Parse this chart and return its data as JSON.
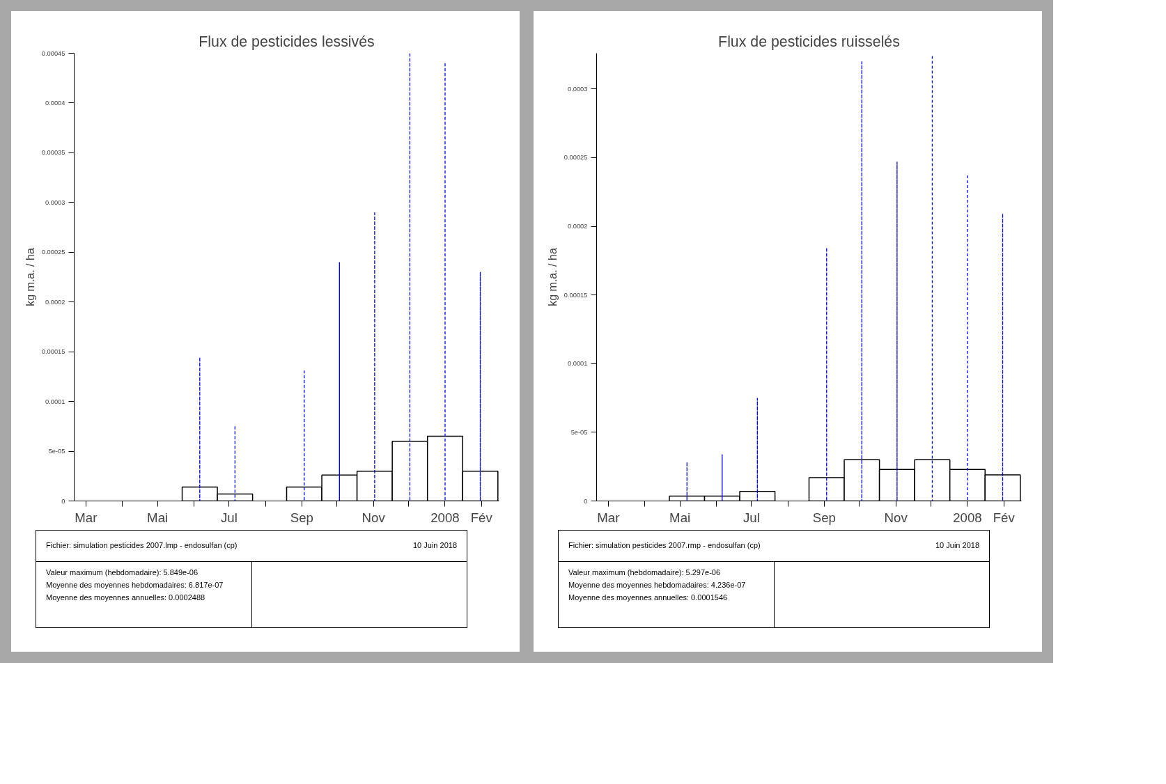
{
  "chart_data": [
    {
      "type": "bar",
      "title": "Flux de pesticides lessivés",
      "ylabel": "kg m.a. / ha",
      "series": [
        {
          "color": "#ffffff",
          "x": [
            "2007-03-08",
            "2007-04-07",
            "2007-05-07",
            "2007-06-06",
            "2007-07-06",
            "2007-08-05",
            "2007-09-03",
            "2007-10-03",
            "2007-11-02",
            "2007-12-02",
            "2008-01-01",
            "2008-01-31"
          ],
          "values": [
            0,
            0,
            0,
            1.4e-05,
            7e-06,
            0,
            1.4e-05,
            2.6e-05,
            3e-05,
            6e-05,
            6.5e-05,
            3e-05
          ]
        },
        {
          "color": "#0000ff",
          "line_style": "dashed",
          "x": [
            "2007-06-06",
            "2007-07-06",
            "2007-09-03",
            "2007-10-03",
            "2007-11-02",
            "2007-12-02",
            "2008-01-01",
            "2008-01-31"
          ],
          "values": [
            0.000144,
            7.5e-05,
            0.000131,
            0.00024,
            0.00029,
            0.00045,
            0.00044,
            0.00023
          ]
        }
      ],
      "xlim": [
        "2007-02-19",
        "2008-02-16"
      ],
      "xticks": [
        {
          "value": "2007-03-01",
          "label": "Mar"
        },
        {
          "value": "2007-04-01",
          "label": null
        },
        {
          "value": "2007-05-01",
          "label": "Mai"
        },
        {
          "value": "2007-06-01",
          "label": null
        },
        {
          "value": "2007-07-01",
          "label": "Jul"
        },
        {
          "value": "2007-08-01",
          "label": null
        },
        {
          "value": "2007-09-01",
          "label": "Sep"
        },
        {
          "value": "2007-10-01",
          "label": null
        },
        {
          "value": "2007-11-01",
          "label": "Nov"
        },
        {
          "value": "2007-12-01",
          "label": null
        },
        {
          "value": "2008-01-01",
          "label": "2008"
        },
        {
          "value": "2008-02-01",
          "label": "Fév"
        }
      ],
      "ylim": [
        0,
        0.00045
      ],
      "yticks": [
        0,
        5e-05,
        0.0001,
        0.00015,
        0.0002,
        0.00025,
        0.0003,
        0.00035,
        0.0004,
        0.00045
      ],
      "annotations": [
        "Fichier: simulation pesticides 2007.lmp - endosulfan (cp)",
        "10 Juin 2018",
        "Valeur maximum (hebdomadaire): 5.849e-06",
        "Moyenne des moyennes hebdomadaires: 6.817e-07",
        "Moyenne des moyennes annuelles: 0.0002488"
      ]
    },
    {
      "type": "bar",
      "title": "Flux de pesticides ruisselés",
      "ylabel": "kg m.a. / ha",
      "series": [
        {
          "color": "#ffffff",
          "x": [
            "2007-03-08",
            "2007-04-07",
            "2007-05-07",
            "2007-06-06",
            "2007-07-06",
            "2007-08-05",
            "2007-09-03",
            "2007-10-03",
            "2007-11-02",
            "2007-12-02",
            "2008-01-01",
            "2008-01-31"
          ],
          "values": [
            0,
            0,
            3.6e-06,
            3.6e-06,
            7e-06,
            0,
            1.7e-05,
            3e-05,
            2.3e-05,
            3e-05,
            2.3e-05,
            1.9e-05
          ]
        },
        {
          "color": "#0000ff",
          "line_style": "dashed",
          "x": [
            "2007-05-07",
            "2007-06-06",
            "2007-07-06",
            "2007-09-03",
            "2007-10-03",
            "2007-11-02",
            "2007-12-02",
            "2008-01-01",
            "2008-01-31"
          ],
          "values": [
            2.8e-05,
            3.4e-05,
            7.5e-05,
            0.000184,
            0.00032,
            0.000247,
            0.000324,
            0.000237,
            0.000209
          ]
        }
      ],
      "xlim": [
        "2007-02-19",
        "2008-02-16"
      ],
      "xticks": [
        {
          "value": "2007-03-01",
          "label": "Mar"
        },
        {
          "value": "2007-04-01",
          "label": null
        },
        {
          "value": "2007-05-01",
          "label": "Mai"
        },
        {
          "value": "2007-06-01",
          "label": null
        },
        {
          "value": "2007-07-01",
          "label": "Jul"
        },
        {
          "value": "2007-08-01",
          "label": null
        },
        {
          "value": "2007-09-01",
          "label": "Sep"
        },
        {
          "value": "2007-10-01",
          "label": null
        },
        {
          "value": "2007-11-01",
          "label": "Nov"
        },
        {
          "value": "2007-12-01",
          "label": null
        },
        {
          "value": "2008-01-01",
          "label": "2008"
        },
        {
          "value": "2008-02-01",
          "label": "Fév"
        }
      ],
      "ylim": [
        0,
        0.000326
      ],
      "yticks": [
        0,
        5e-05,
        0.0001,
        0.00015,
        0.0002,
        0.00025,
        0.0003
      ],
      "annotations": [
        "Fichier: simulation pesticides 2007.rmp - endosulfan (cp)",
        "10 Juin 2018",
        "Valeur maximum (hebdomadaire): 5.297e-06",
        "Moyenne des moyennes hebdomadaires: 4.236e-07",
        "Moyenne des moyennes annuelles: 0.0001546"
      ]
    }
  ]
}
